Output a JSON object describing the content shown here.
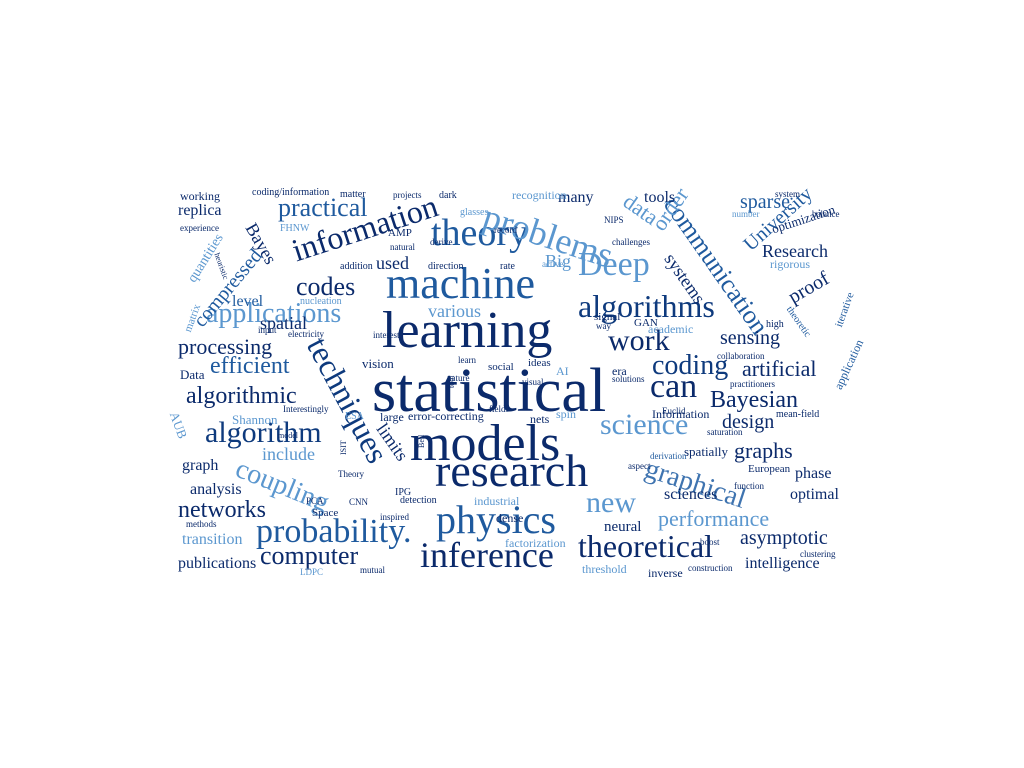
{
  "palette": {
    "navy": "#0b2a6b",
    "dark": "#0e3a7d",
    "mid": "#1f5a9e",
    "steel": "#3f74b0",
    "sky": "#5b97cf",
    "pale": "#8dbbe3"
  },
  "words": [
    {
      "text": "statistical",
      "color": "navy"
    },
    {
      "text": "learning",
      "color": "navy"
    },
    {
      "text": "models",
      "color": "navy"
    },
    {
      "text": "machine",
      "color": "mid"
    },
    {
      "text": "research",
      "color": "navy"
    },
    {
      "text": "physics",
      "color": "mid"
    },
    {
      "text": "information",
      "color": "navy"
    },
    {
      "text": "theory",
      "color": "mid"
    },
    {
      "text": "problems",
      "color": "sky"
    },
    {
      "text": "techniques",
      "color": "dark"
    },
    {
      "text": "inference",
      "color": "navy"
    },
    {
      "text": "Deep",
      "color": "sky"
    },
    {
      "text": "algorithms",
      "color": "dark"
    },
    {
      "text": "work",
      "color": "navy"
    },
    {
      "text": "science",
      "color": "sky"
    },
    {
      "text": "theoretical",
      "color": "navy"
    },
    {
      "text": "probability.",
      "color": "mid"
    },
    {
      "text": "communication",
      "color": "mid"
    },
    {
      "text": "graphical",
      "color": "steel"
    },
    {
      "text": "applications",
      "color": "sky"
    },
    {
      "text": "algorithm",
      "color": "dark"
    },
    {
      "text": "coupling",
      "color": "sky"
    },
    {
      "text": "coding",
      "color": "dark"
    },
    {
      "text": "can",
      "color": "navy"
    },
    {
      "text": "new",
      "color": "sky"
    },
    {
      "text": "codes",
      "color": "navy"
    },
    {
      "text": "practical",
      "color": "mid"
    },
    {
      "text": "computer",
      "color": "navy"
    },
    {
      "text": "algorithmic",
      "color": "navy"
    },
    {
      "text": "efficient",
      "color": "mid"
    },
    {
      "text": "Bayesian",
      "color": "navy"
    },
    {
      "text": "performance",
      "color": "sky"
    },
    {
      "text": "data",
      "color": "sky"
    },
    {
      "text": "order",
      "color": "sky"
    },
    {
      "text": "networks",
      "color": "navy"
    },
    {
      "text": "processing",
      "color": "navy"
    },
    {
      "text": "compressed",
      "color": "mid"
    },
    {
      "text": "design",
      "color": "navy"
    },
    {
      "text": "graphs",
      "color": "navy"
    },
    {
      "text": "sensing",
      "color": "navy"
    },
    {
      "text": "artificial",
      "color": "navy"
    },
    {
      "text": "University",
      "color": "mid"
    },
    {
      "text": "proof",
      "color": "navy"
    },
    {
      "text": "sparse",
      "color": "mid"
    },
    {
      "text": "systems",
      "color": "navy"
    },
    {
      "text": "Big",
      "color": "sky"
    },
    {
      "text": "Research",
      "color": "navy"
    },
    {
      "text": "asymptotic",
      "color": "navy"
    },
    {
      "text": "include",
      "color": "sky"
    },
    {
      "text": "limits",
      "color": "navy"
    },
    {
      "text": "used",
      "color": "navy"
    },
    {
      "text": "various",
      "color": "sky"
    },
    {
      "text": "Bayes",
      "color": "navy"
    },
    {
      "text": "spatial",
      "color": "navy"
    },
    {
      "text": "level",
      "color": "mid"
    },
    {
      "text": "analysis",
      "color": "navy"
    },
    {
      "text": "graph",
      "color": "navy"
    },
    {
      "text": "transition",
      "color": "sky"
    },
    {
      "text": "publications",
      "color": "navy"
    },
    {
      "text": "sciences",
      "color": "navy"
    },
    {
      "text": "optimal",
      "color": "navy"
    },
    {
      "text": "intelligence",
      "color": "navy"
    },
    {
      "text": "phase",
      "color": "navy"
    },
    {
      "text": "tools",
      "color": "navy"
    },
    {
      "text": "many",
      "color": "navy"
    },
    {
      "text": "replica",
      "color": "navy"
    },
    {
      "text": "quantities",
      "color": "sky"
    },
    {
      "text": "neural",
      "color": "navy"
    },
    {
      "text": "spatially",
      "color": "navy"
    },
    {
      "text": "factorization",
      "color": "sky"
    },
    {
      "text": "threshold",
      "color": "sky"
    },
    {
      "text": "inverse",
      "color": "navy"
    },
    {
      "text": "Shannon",
      "color": "sky"
    },
    {
      "text": "Data",
      "color": "navy"
    },
    {
      "text": "vision",
      "color": "navy"
    },
    {
      "text": "Information",
      "color": "navy"
    },
    {
      "text": "optimization",
      "color": "navy"
    },
    {
      "text": "rigorous",
      "color": "sky"
    },
    {
      "text": "academic",
      "color": "sky"
    },
    {
      "text": "recognition",
      "color": "sky"
    },
    {
      "text": "working",
      "color": "navy"
    },
    {
      "text": "AUB",
      "color": "sky"
    },
    {
      "text": "dense",
      "color": "navy"
    },
    {
      "text": "industrial",
      "color": "sky"
    },
    {
      "text": "error-correcting",
      "color": "navy"
    },
    {
      "text": "large",
      "color": "navy"
    },
    {
      "text": "nets",
      "color": "navy"
    },
    {
      "text": "spin",
      "color": "sky"
    },
    {
      "text": "era",
      "color": "navy"
    },
    {
      "text": "AI",
      "color": "sky"
    },
    {
      "text": "ideas",
      "color": "navy"
    },
    {
      "text": "social",
      "color": "navy"
    },
    {
      "text": "signal",
      "color": "navy"
    },
    {
      "text": "GAN",
      "color": "navy"
    },
    {
      "text": "European",
      "color": "navy"
    },
    {
      "text": "application",
      "color": "mid"
    },
    {
      "text": "iterative",
      "color": "mid"
    },
    {
      "text": "theoretic",
      "color": "mid"
    },
    {
      "text": "mean-field",
      "color": "navy"
    },
    {
      "text": "high",
      "color": "navy"
    },
    {
      "text": "collaboration",
      "color": "navy"
    },
    {
      "text": "practitioners",
      "color": "navy"
    },
    {
      "text": "Euclid",
      "color": "navy"
    },
    {
      "text": "function",
      "color": "navy"
    },
    {
      "text": "saturation",
      "color": "navy"
    },
    {
      "text": "derivation",
      "color": "mid"
    },
    {
      "text": "aspect",
      "color": "navy"
    },
    {
      "text": "boost",
      "color": "navy"
    },
    {
      "text": "clustering",
      "color": "navy"
    },
    {
      "text": "construction",
      "color": "navy"
    },
    {
      "text": "mutual",
      "color": "navy"
    },
    {
      "text": "LDPC",
      "color": "sky"
    },
    {
      "text": "methods",
      "color": "navy"
    },
    {
      "text": "PCA",
      "color": "navy"
    },
    {
      "text": "Space",
      "color": "navy"
    },
    {
      "text": "Theory",
      "color": "navy"
    },
    {
      "text": "CNN",
      "color": "navy"
    },
    {
      "text": "ISIT",
      "color": "navy"
    },
    {
      "text": "Bell",
      "color": "navy"
    },
    {
      "text": "tool",
      "color": "navy"
    },
    {
      "text": "fields",
      "color": "navy"
    },
    {
      "text": "visual",
      "color": "navy"
    },
    {
      "text": "solutions",
      "color": "navy"
    },
    {
      "text": "detection",
      "color": "navy"
    },
    {
      "text": "inspired",
      "color": "navy"
    },
    {
      "text": "IPG",
      "color": "navy"
    },
    {
      "text": "ESA",
      "color": "sky"
    },
    {
      "text": "Interestingly",
      "color": "navy"
    },
    {
      "text": "model",
      "color": "navy"
    },
    {
      "text": "matrix",
      "color": "sky"
    },
    {
      "text": "input",
      "color": "navy"
    },
    {
      "text": "electricity",
      "color": "navy"
    },
    {
      "text": "interest",
      "color": "navy"
    },
    {
      "text": "nature",
      "color": "navy"
    },
    {
      "text": "learn",
      "color": "navy"
    },
    {
      "text": "nucleation",
      "color": "sky"
    },
    {
      "text": "addition",
      "color": "navy"
    },
    {
      "text": "natural",
      "color": "navy"
    },
    {
      "text": "direction",
      "color": "navy"
    },
    {
      "text": "rate",
      "color": "navy"
    },
    {
      "text": "active",
      "color": "sky"
    },
    {
      "text": "way",
      "color": "navy"
    },
    {
      "text": "FHNW",
      "color": "sky"
    },
    {
      "text": "AMP",
      "color": "navy"
    },
    {
      "text": "derive",
      "color": "navy"
    },
    {
      "text": "experience",
      "color": "navy"
    },
    {
      "text": "coding/information",
      "color": "navy"
    },
    {
      "text": "matter",
      "color": "navy"
    },
    {
      "text": "projects",
      "color": "navy"
    },
    {
      "text": "dark",
      "color": "navy"
    },
    {
      "text": "glasses",
      "color": "sky"
    },
    {
      "text": "record",
      "color": "navy"
    },
    {
      "text": "NIPS",
      "color": "navy"
    },
    {
      "text": "number",
      "color": "sky"
    },
    {
      "text": "system",
      "color": "navy"
    },
    {
      "text": "balance",
      "color": "navy"
    },
    {
      "text": "challenges",
      "color": "navy"
    },
    {
      "text": "heuristic",
      "color": "navy"
    }
  ]
}
